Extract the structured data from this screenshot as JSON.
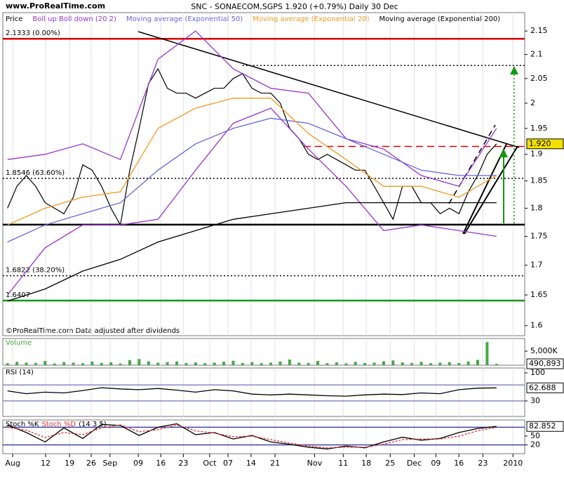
{
  "header": {
    "site": "www.ProRealTime.com",
    "title": "SNC - SONAECOM,SGPS   1.920 (+0.79%)   Daily  30 Dec",
    "footer": "©ProRealTime.com Data adjusted after dividends"
  },
  "chart_data": [
    {
      "type": "line",
      "log": true,
      "ylim": [
        1.584,
        2.19
      ],
      "yticks": [
        2.15,
        2.1,
        2.05,
        2,
        1.95,
        1.9,
        1.85,
        1.8,
        1.75,
        1.7,
        1.65,
        1.6
      ],
      "xlim": [
        -1,
        110
      ],
      "xticks": [
        {
          "value": 1.1,
          "label": "Aug"
        },
        {
          "value": 8.1,
          "label": "12"
        },
        {
          "value": 13.2,
          "label": "19"
        },
        {
          "value": 17.8,
          "label": "26"
        },
        {
          "value": 21.8,
          "label": "Sep"
        },
        {
          "value": 27.8,
          "label": "09"
        },
        {
          "value": 32.6,
          "label": "16"
        },
        {
          "value": 37.4,
          "label": "23"
        },
        {
          "value": 43.0,
          "label": "Oct"
        },
        {
          "value": 46.9,
          "label": "07"
        },
        {
          "value": 51.8,
          "label": "14"
        },
        {
          "value": 56.9,
          "label": "21"
        },
        {
          "value": 65.3,
          "label": "Nov"
        },
        {
          "value": 71.4,
          "label": "11"
        },
        {
          "value": 76.3,
          "label": "18"
        },
        {
          "value": 81.4,
          "label": "25"
        },
        {
          "value": 86.5,
          "label": "Dec"
        },
        {
          "value": 91.1,
          "label": "09"
        },
        {
          "value": 96.0,
          "label": "16"
        },
        {
          "value": 101.1,
          "label": "23"
        },
        {
          "value": 107.5,
          "label": "2010"
        }
      ],
      "x": [
        0,
        2,
        4,
        6,
        8,
        10,
        12,
        14,
        16,
        18,
        20,
        22,
        24,
        26,
        28,
        30,
        32,
        34,
        36,
        38,
        40,
        42,
        44,
        46,
        48,
        50,
        52,
        54,
        56,
        58,
        60,
        62,
        64,
        66,
        68,
        70,
        72,
        74,
        76,
        78,
        80,
        82,
        84,
        86,
        88,
        90,
        92,
        94,
        96,
        98,
        100,
        102,
        104
      ],
      "series": [
        {
          "name": "Price",
          "color": "#000000",
          "values": [
            1.8,
            1.84,
            1.86,
            1.84,
            1.81,
            1.8,
            1.79,
            1.82,
            1.88,
            1.87,
            1.84,
            1.8,
            1.77,
            1.87,
            1.95,
            2.04,
            2.07,
            2.03,
            2.02,
            2.02,
            2.01,
            2.02,
            2.03,
            2.03,
            2.05,
            2.06,
            2.03,
            2.02,
            2.02,
            2.0,
            1.95,
            1.93,
            1.9,
            1.89,
            1.9,
            1.89,
            1.88,
            1.87,
            1.87,
            1.84,
            1.81,
            1.78,
            1.84,
            1.84,
            1.81,
            1.81,
            1.79,
            1.8,
            1.79,
            1.83,
            1.86,
            1.9,
            1.92
          ]
        },
        {
          "name": "Boll up Boll down (20 2)",
          "color": "#9933cc",
          "x": [
            0,
            8,
            16,
            24,
            32,
            40,
            48,
            56,
            64,
            72,
            80,
            88,
            96,
            104
          ],
          "values": [
            1.89,
            1.9,
            1.92,
            1.89,
            2.09,
            2.15,
            2.07,
            2.03,
            2.02,
            1.93,
            1.91,
            1.86,
            1.84,
            1.95
          ],
          "values_lower": [
            1.65,
            1.73,
            1.77,
            1.77,
            1.78,
            1.87,
            1.96,
            1.99,
            1.91,
            1.84,
            1.76,
            1.77,
            1.76,
            1.75
          ]
        },
        {
          "name": "Moving average (Exponential 50)",
          "color": "#6666dd",
          "x": [
            0,
            8,
            16,
            24,
            32,
            40,
            48,
            56,
            64,
            72,
            80,
            88,
            96,
            104
          ],
          "values": [
            1.74,
            1.77,
            1.79,
            1.81,
            1.87,
            1.92,
            1.95,
            1.97,
            1.96,
            1.93,
            1.9,
            1.87,
            1.86,
            1.86
          ]
        },
        {
          "name": "Moving average (Exponential 20)",
          "color": "#ee9922",
          "x": [
            0,
            8,
            16,
            24,
            32,
            40,
            48,
            56,
            64,
            72,
            80,
            88,
            96,
            104
          ],
          "values": [
            1.77,
            1.8,
            1.82,
            1.83,
            1.95,
            1.99,
            2.01,
            2.01,
            1.94,
            1.89,
            1.84,
            1.84,
            1.82,
            1.86
          ]
        },
        {
          "name": "Moving average (Exponential 200)",
          "color": "#000000",
          "x": [
            0,
            8,
            16,
            24,
            32,
            40,
            48,
            56,
            64,
            72,
            80,
            88,
            96,
            104
          ],
          "values": [
            1.64,
            1.66,
            1.69,
            1.71,
            1.74,
            1.76,
            1.78,
            1.79,
            1.8,
            1.81,
            1.81,
            1.81,
            1.81,
            1.81
          ]
        }
      ],
      "levels": [
        {
          "value": 2.1333,
          "label": "2.1333 (0.00%)",
          "color": "#dd0000",
          "style": "solid"
        },
        {
          "value": 1.8546,
          "label": "1.8546 (63.60%)",
          "color": "#000000",
          "style": "dotted"
        },
        {
          "value": 1.6822,
          "label": "1.6822 (38.20%)",
          "color": "#000000",
          "style": "dotted"
        },
        {
          "value": 1.6407,
          "label": "1.6407",
          "color": "#119911",
          "style": "solid"
        },
        {
          "value": 2.077,
          "color": "#000000",
          "style": "dotted",
          "from": 50
        },
        {
          "value": 1.7706,
          "color": "#000000",
          "style": "solid"
        },
        {
          "value": 1.915,
          "color": "#dd0000",
          "style": "dashed",
          "from": 63
        }
      ],
      "last_value": {
        "value": 1.92,
        "label": "1.920"
      }
    },
    {
      "type": "bar",
      "title": "Volume",
      "ylim": [
        0,
        9500000
      ],
      "yticks": [
        {
          "value": 5000000,
          "label": "5,000K"
        }
      ],
      "color": "#44aa44",
      "x": [
        0,
        2,
        4,
        6,
        8,
        10,
        12,
        14,
        16,
        18,
        20,
        22,
        24,
        26,
        28,
        30,
        32,
        34,
        36,
        38,
        40,
        42,
        44,
        46,
        48,
        50,
        52,
        54,
        56,
        58,
        60,
        62,
        64,
        66,
        68,
        70,
        72,
        74,
        76,
        78,
        80,
        82,
        84,
        86,
        88,
        90,
        92,
        94,
        96,
        98,
        100,
        102,
        104
      ],
      "values": [
        700000,
        1200000,
        900000,
        800000,
        1500000,
        600000,
        1100000,
        900000,
        700000,
        1300000,
        800000,
        1000000,
        600000,
        1800000,
        2200000,
        1400000,
        900000,
        1100000,
        1300000,
        800000,
        1000000,
        700000,
        900000,
        1200000,
        1600000,
        800000,
        1100000,
        700000,
        900000,
        1300000,
        2000000,
        900000,
        800000,
        1500000,
        700000,
        1000000,
        600000,
        1200000,
        800000,
        900000,
        1400000,
        1700000,
        1000000,
        800000,
        1200000,
        700000,
        900000,
        1100000,
        800000,
        1300000,
        1900000,
        8200000,
        490893
      ],
      "last_value": {
        "value": 490893,
        "label": "490,893"
      }
    },
    {
      "type": "line",
      "title": "RSI (14)",
      "ylim": [
        -8.75,
        112.25
      ],
      "yticks": [
        100,
        30
      ],
      "levels": [
        {
          "value": 70,
          "color": "#8888cc",
          "style": "solid"
        },
        {
          "value": 30,
          "color": "#8888cc",
          "style": "solid"
        }
      ],
      "x": [
        0,
        4,
        8,
        12,
        16,
        20,
        24,
        28,
        32,
        36,
        40,
        44,
        48,
        52,
        56,
        60,
        64,
        68,
        72,
        76,
        80,
        84,
        88,
        92,
        96,
        100,
        104
      ],
      "series": [
        {
          "color": "#000000",
          "values": [
            55,
            48,
            52,
            50,
            56,
            63,
            60,
            58,
            61,
            57,
            52,
            58,
            55,
            47,
            45,
            47,
            45,
            43,
            42,
            45,
            47,
            46,
            50,
            48,
            58,
            62,
            62.688
          ]
        }
      ],
      "last_value": {
        "value": 62.688,
        "label": "62.688"
      }
    },
    {
      "type": "line",
      "title": "(14 3 5)",
      "ylim": [
        -10,
        105
      ],
      "yticks": [
        50,
        20
      ],
      "levels": [
        {
          "value": 80,
          "color": "#4444aa",
          "style": "solid"
        },
        {
          "value": 20,
          "color": "#4444aa",
          "style": "solid"
        }
      ],
      "x": [
        0,
        4,
        8,
        12,
        16,
        20,
        24,
        28,
        32,
        36,
        40,
        44,
        48,
        52,
        56,
        60,
        64,
        68,
        72,
        76,
        80,
        84,
        88,
        92,
        96,
        100,
        104
      ],
      "series": [
        {
          "name": "Stoch %K",
          "color": "#000000",
          "values": [
            88,
            62,
            30,
            78,
            42,
            90,
            86,
            52,
            80,
            92,
            55,
            62,
            40,
            52,
            30,
            22,
            12,
            6,
            16,
            10,
            30,
            46,
            36,
            42,
            62,
            76,
            82.852
          ]
        },
        {
          "name": "Stoch %D",
          "color": "#dd3333",
          "dash": true,
          "values": [
            80,
            70,
            45,
            62,
            55,
            78,
            88,
            65,
            72,
            88,
            68,
            60,
            48,
            50,
            38,
            26,
            16,
            10,
            12,
            12,
            22,
            38,
            40,
            40,
            50,
            68,
            80
          ]
        }
      ],
      "last_value": {
        "value": 82.852,
        "label": "82.852"
      }
    }
  ]
}
